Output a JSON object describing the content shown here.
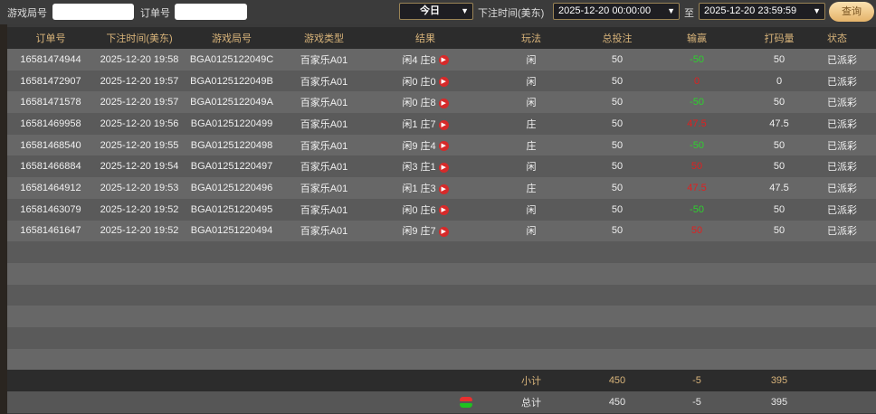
{
  "filters": {
    "round_label": "游戏局号",
    "round_value": "",
    "order_label": "订单号",
    "order_value": "",
    "period": "今日",
    "time_label": "下注时间(美东)",
    "start": "2025-12-20 00:00:00",
    "to": "至",
    "end": "2025-12-20 23:59:59",
    "query": "查询"
  },
  "columns": [
    "订单号",
    "下注时间(美东)",
    "游戏局号",
    "游戏类型",
    "结果",
    "玩法",
    "总投注",
    "输赢",
    "打码量",
    "状态"
  ],
  "rows": [
    {
      "order": "16581474944",
      "time": "2025-12-20 19:58",
      "round": "BGA0125122049C",
      "type": "百家乐A01",
      "result": "闲4 庄8",
      "play": "闲",
      "bet": "50",
      "winloss": "-50",
      "wl": "win",
      "valid": "50",
      "status": "已派彩"
    },
    {
      "order": "16581472907",
      "time": "2025-12-20 19:57",
      "round": "BGA0125122049B",
      "type": "百家乐A01",
      "result": "闲0 庄0",
      "play": "闲",
      "bet": "50",
      "winloss": "0",
      "wl": "lose",
      "valid": "0",
      "status": "已派彩"
    },
    {
      "order": "16581471578",
      "time": "2025-12-20 19:57",
      "round": "BGA0125122049A",
      "type": "百家乐A01",
      "result": "闲0 庄8",
      "play": "闲",
      "bet": "50",
      "winloss": "-50",
      "wl": "win",
      "valid": "50",
      "status": "已派彩"
    },
    {
      "order": "16581469958",
      "time": "2025-12-20 19:56",
      "round": "BGA01251220499",
      "type": "百家乐A01",
      "result": "闲1 庄7",
      "play": "庄",
      "bet": "50",
      "winloss": "47.5",
      "wl": "lose",
      "valid": "47.5",
      "status": "已派彩"
    },
    {
      "order": "16581468540",
      "time": "2025-12-20 19:55",
      "round": "BGA01251220498",
      "type": "百家乐A01",
      "result": "闲9 庄4",
      "play": "庄",
      "bet": "50",
      "winloss": "-50",
      "wl": "win",
      "valid": "50",
      "status": "已派彩"
    },
    {
      "order": "16581466884",
      "time": "2025-12-20 19:54",
      "round": "BGA01251220497",
      "type": "百家乐A01",
      "result": "闲3 庄1",
      "play": "闲",
      "bet": "50",
      "winloss": "50",
      "wl": "lose",
      "valid": "50",
      "status": "已派彩"
    },
    {
      "order": "16581464912",
      "time": "2025-12-20 19:53",
      "round": "BGA01251220496",
      "type": "百家乐A01",
      "result": "闲1 庄3",
      "play": "庄",
      "bet": "50",
      "winloss": "47.5",
      "wl": "lose",
      "valid": "47.5",
      "status": "已派彩"
    },
    {
      "order": "16581463079",
      "time": "2025-12-20 19:52",
      "round": "BGA01251220495",
      "type": "百家乐A01",
      "result": "闲0 庄6",
      "play": "闲",
      "bet": "50",
      "winloss": "-50",
      "wl": "win",
      "valid": "50",
      "status": "已派彩"
    },
    {
      "order": "16581461647",
      "time": "2025-12-20 19:52",
      "round": "BGA01251220494",
      "type": "百家乐A01",
      "result": "闲9 庄7",
      "play": "闲",
      "bet": "50",
      "winloss": "50",
      "wl": "lose",
      "valid": "50",
      "status": "已派彩"
    }
  ],
  "subtotal": {
    "label": "小计",
    "bet": "450",
    "winloss": "-5",
    "valid": "395"
  },
  "total": {
    "label": "总计",
    "bet": "450",
    "winloss": "-5",
    "valid": "395"
  },
  "icons": {
    "play": "play-icon",
    "refresh": "refresh-icon"
  }
}
